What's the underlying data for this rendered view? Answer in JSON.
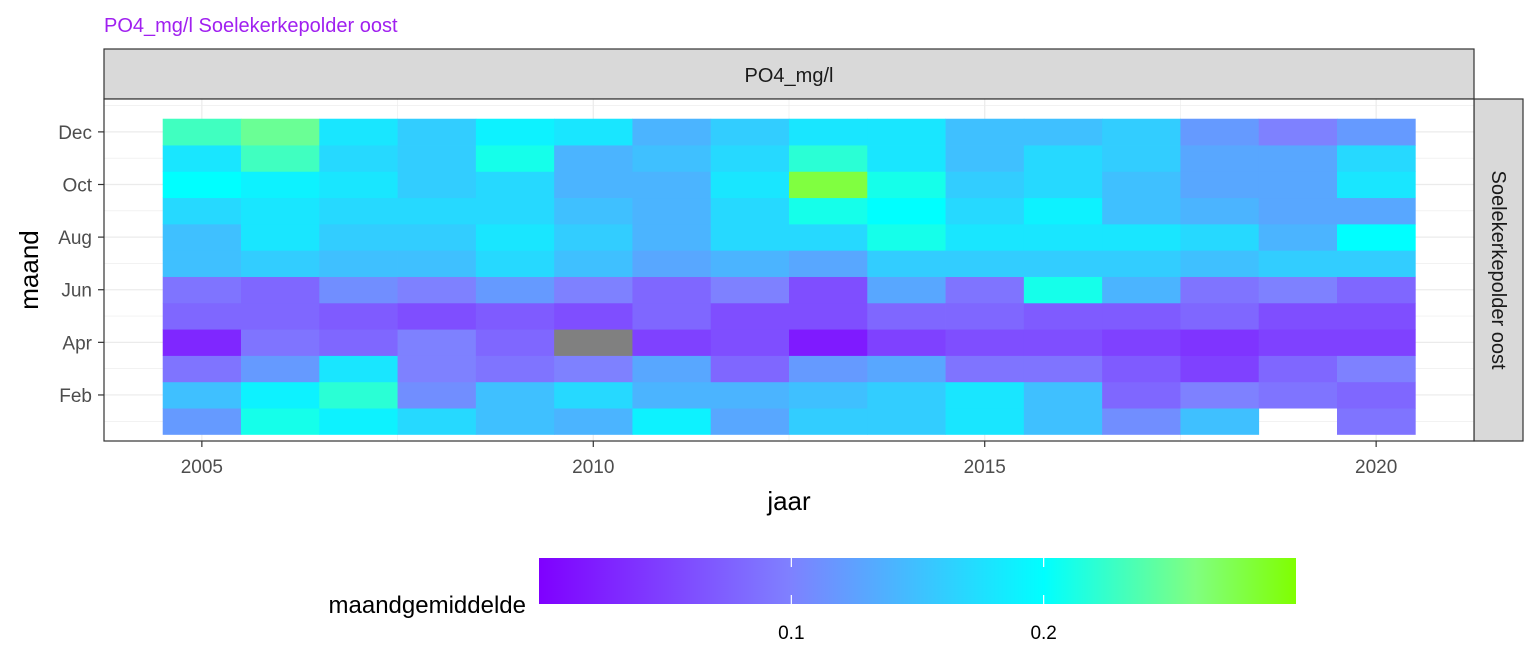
{
  "chart_data": {
    "type": "heatmap",
    "title": "PO4_mg/l Soelekerkepolder oost",
    "title_color": "#A020F0",
    "facet_top": "PO4_mg/l",
    "facet_right": "Soelekerkepolder oost",
    "xlabel": "jaar",
    "ylabel": "maand",
    "x_ticks": [
      2005,
      2010,
      2015,
      2020
    ],
    "y_ticks": [
      {
        "month": 2,
        "label": "Feb"
      },
      {
        "month": 4,
        "label": "Apr"
      },
      {
        "month": 6,
        "label": "Jun"
      },
      {
        "month": 8,
        "label": "Aug"
      },
      {
        "month": 10,
        "label": "Oct"
      },
      {
        "month": 12,
        "label": "Dec"
      }
    ],
    "xlim": [
      2003.75,
      2021.25
    ],
    "ylim": [
      0.25,
      13.25
    ],
    "years": [
      2005,
      2006,
      2007,
      2008,
      2009,
      2010,
      2011,
      2012,
      2013,
      2014,
      2015,
      2016,
      2017,
      2018,
      2019,
      2020
    ],
    "months": [
      1,
      2,
      3,
      4,
      5,
      6,
      7,
      8,
      9,
      10,
      11,
      12
    ],
    "values": [
      [
        0.12,
        0.15,
        0.09,
        0.03,
        0.08,
        0.09,
        0.15,
        0.15,
        0.17,
        0.2,
        0.18,
        0.23
      ],
      [
        0.21,
        0.19,
        0.12,
        0.09,
        0.08,
        0.08,
        0.16,
        0.18,
        0.18,
        0.19,
        0.23,
        0.25
      ],
      [
        0.19,
        0.22,
        0.18,
        0.08,
        0.07,
        0.11,
        0.15,
        0.16,
        0.17,
        0.18,
        0.17,
        0.18
      ],
      [
        0.17,
        0.11,
        0.1,
        0.1,
        0.06,
        0.1,
        0.15,
        0.16,
        0.17,
        0.16,
        0.16,
        0.16
      ],
      [
        0.15,
        0.15,
        0.09,
        0.08,
        0.07,
        0.12,
        0.17,
        0.18,
        0.17,
        0.17,
        0.21,
        0.19
      ],
      [
        0.14,
        0.17,
        0.1,
        null,
        0.06,
        0.1,
        0.15,
        0.16,
        0.15,
        0.14,
        0.14,
        0.18
      ],
      [
        0.19,
        0.14,
        0.13,
        0.05,
        0.08,
        0.08,
        0.13,
        0.14,
        0.14,
        0.14,
        0.15,
        0.14
      ],
      [
        0.13,
        0.14,
        0.08,
        0.06,
        0.06,
        0.1,
        0.14,
        0.17,
        0.17,
        0.18,
        0.17,
        0.16
      ],
      [
        0.16,
        0.15,
        0.12,
        0.02,
        0.06,
        0.06,
        0.13,
        0.17,
        0.21,
        0.28,
        0.22,
        0.18
      ],
      [
        0.16,
        0.16,
        0.13,
        0.05,
        0.08,
        0.13,
        0.16,
        0.21,
        0.2,
        0.21,
        0.18,
        0.18
      ],
      [
        0.18,
        0.18,
        0.09,
        0.06,
        0.08,
        0.09,
        0.16,
        0.18,
        0.17,
        0.16,
        0.15,
        0.15
      ],
      [
        0.15,
        0.15,
        0.09,
        0.06,
        0.07,
        0.21,
        0.16,
        0.18,
        0.19,
        0.17,
        0.17,
        0.15
      ],
      [
        0.11,
        0.08,
        0.07,
        0.05,
        0.07,
        0.14,
        0.16,
        0.18,
        0.15,
        0.15,
        0.16,
        0.16
      ],
      [
        0.15,
        0.1,
        0.05,
        0.04,
        0.08,
        0.09,
        0.15,
        0.17,
        0.14,
        0.13,
        0.13,
        0.12
      ],
      [
        null,
        0.09,
        0.08,
        0.05,
        0.06,
        0.1,
        0.16,
        0.14,
        0.13,
        0.13,
        0.13,
        0.1
      ],
      [
        0.09,
        0.08,
        0.1,
        0.05,
        0.06,
        0.08,
        0.16,
        0.2,
        0.13,
        0.18,
        0.17,
        0.12
      ]
    ],
    "na_color": "#808080",
    "colorbar": {
      "title": "maandgemiddelde",
      "ticks": [
        0.1,
        0.2
      ],
      "range": [
        0.0,
        0.3
      ],
      "colors": [
        "#7F00FF",
        "#7F80FF",
        "#00FFFF",
        "#80FF80",
        "#80FF00",
        "#FF0000"
      ],
      "stops": [
        0.0,
        0.33,
        0.667,
        0.867,
        1.0,
        1.0
      ]
    },
    "grid": true,
    "legend_position": "bottom"
  }
}
